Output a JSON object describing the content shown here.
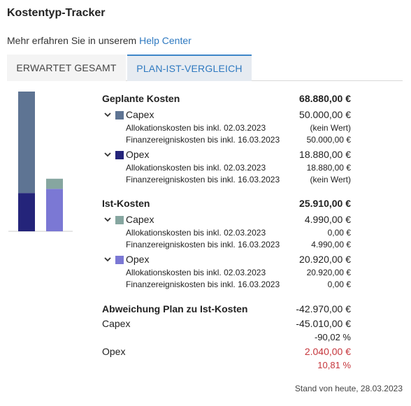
{
  "header": {
    "title": "Kostentyp-Tracker"
  },
  "help": {
    "text": "Mehr erfahren Sie in unserem",
    "link": "Help Center"
  },
  "tabs": [
    {
      "label": "ERWARTET GESAMT",
      "active": false
    },
    {
      "label": "PLAN-IST-VERGLEICH",
      "active": true
    }
  ],
  "colors": {
    "planned_capex": "#5e7493",
    "planned_opex": "#24247a",
    "actual_capex": "#86a6a0",
    "actual_opex": "#7b78d4",
    "negative_red": "#c6363c",
    "tab_accent": "#2e79c0"
  },
  "chart_data": {
    "type": "bar",
    "stacked": true,
    "categories": [
      "",
      ""
    ],
    "series": [
      {
        "values": [
          18880.0,
          20920.0
        ],
        "colors": [
          "#24247a",
          "#7b78d4"
        ]
      },
      {
        "values": [
          50000.0,
          4990.0
        ],
        "colors": [
          "#5e7493",
          "#86a6a0"
        ]
      }
    ],
    "ylim": [
      0,
      68880
    ],
    "title": "",
    "xlabel": "",
    "ylabel": ""
  },
  "planned": {
    "title": "Geplante Kosten",
    "total": "68.880,00 €",
    "capex": {
      "label": "Capex",
      "value": "50.000,00 €",
      "alloc_label": "Allokationskosten bis inkl. 02.03.2023",
      "alloc_value": "(kein Wert)",
      "fin_label": "Finanzereigniskosten bis inkl. 16.03.2023",
      "fin_value": "50.000,00 €"
    },
    "opex": {
      "label": "Opex",
      "value": "18.880,00 €",
      "alloc_label": "Allokationskosten bis inkl. 02.03.2023",
      "alloc_value": "18.880,00 €",
      "fin_label": "Finanzereigniskosten bis inkl. 16.03.2023",
      "fin_value": "(kein Wert)"
    }
  },
  "actual": {
    "title": "Ist-Kosten",
    "total": "25.910,00 €",
    "capex": {
      "label": "Capex",
      "value": "4.990,00 €",
      "alloc_label": "Allokationskosten bis inkl. 02.03.2023",
      "alloc_value": "0,00 €",
      "fin_label": "Finanzereigniskosten bis inkl. 16.03.2023",
      "fin_value": "4.990,00 €"
    },
    "opex": {
      "label": "Opex",
      "value": "20.920,00 €",
      "alloc_label": "Allokationskosten bis inkl. 02.03.2023",
      "alloc_value": "20.920,00 €",
      "fin_label": "Finanzereigniskosten bis inkl. 16.03.2023",
      "fin_value": "0,00 €"
    }
  },
  "deviation": {
    "title": "Abweichung Plan zu Ist-Kosten",
    "total": "-42.970,00 €",
    "capex_label": "Capex",
    "capex_value": "-45.010,00 €",
    "capex_pct": "-90,02 %",
    "opex_label": "Opex",
    "opex_value": "2.040,00 €",
    "opex_pct": "10,81 %"
  },
  "footer": {
    "status": "Stand von heute, 28.03.2023"
  }
}
